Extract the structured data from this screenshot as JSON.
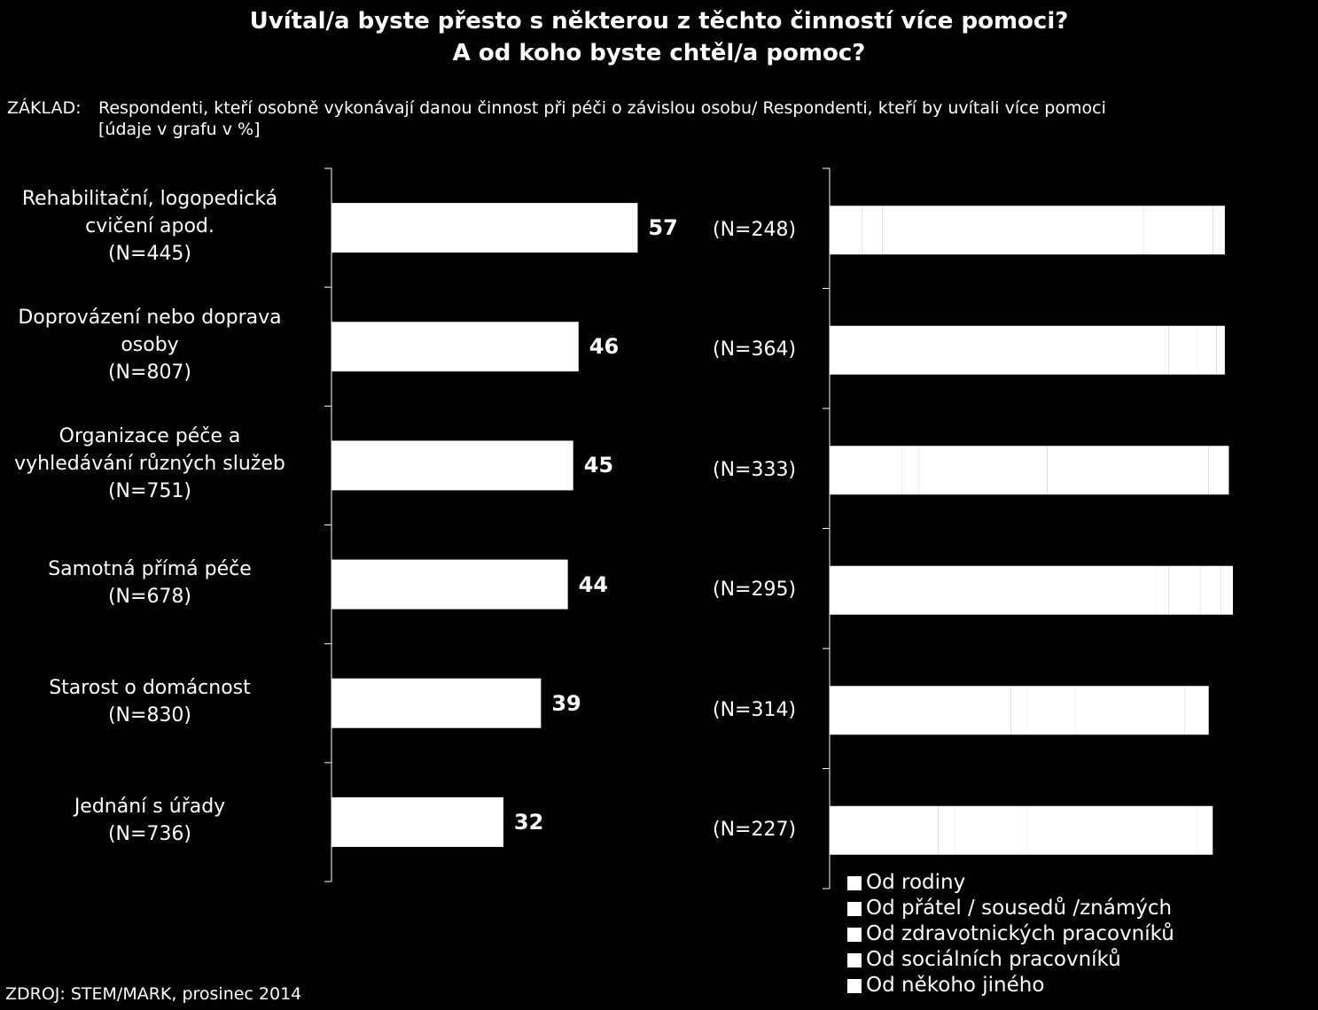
{
  "title": {
    "line1": "Uvítal/a byste přesto s některou z těchto činností více pomoci?",
    "line2": "A od koho byste chtěl/a pomoc?"
  },
  "basis": {
    "label": "ZÁKLAD:",
    "text": "Respondenti, kteří osobně vykonávají danou činnost při péči o závislou osobu/ Respondenti, kteří by uvítali více pomoci",
    "unit": "[údaje v grafu v %]"
  },
  "source": "ZDROJ: STEM/MARK, prosinec 2014",
  "colors": {
    "background": "#000000",
    "bar": "#ffffff",
    "text": "#ffffff"
  },
  "chart_data": [
    {
      "type": "bar",
      "orientation": "horizontal",
      "categories": [
        {
          "lines": [
            "Rehabilitační, logopedická",
            "cvičení apod.",
            "(N=445)"
          ]
        },
        {
          "lines": [
            "Doprovázení nebo doprava",
            "osoby",
            "(N=807)"
          ]
        },
        {
          "lines": [
            "Organizace péče a",
            "vyhledávání různých služeb",
            "(N=751)"
          ]
        },
        {
          "lines": [
            "Samotná přímá péče",
            "(N=678)"
          ]
        },
        {
          "lines": [
            "Starost o domácnost",
            "(N=830)"
          ]
        },
        {
          "lines": [
            "Jednání s úřady",
            "(N=736)"
          ]
        }
      ],
      "values": [
        57,
        46,
        45,
        44,
        39,
        32
      ],
      "data_labels": [
        "57",
        "46",
        "45",
        "44",
        "39",
        "32"
      ],
      "xlim": [
        0,
        100
      ],
      "grid": false
    },
    {
      "type": "bar",
      "orientation": "horizontal",
      "stacked": true,
      "categories": [
        "(N=248)",
        "(N=364)",
        "(N=333)",
        "(N=295)",
        "(N=314)",
        "(N=227)"
      ],
      "series": [
        {
          "name": "Od rodiny",
          "values": [
            8,
            80,
            18,
            81,
            45,
            27
          ]
        },
        {
          "name": "Od přátel / sousedů /známých",
          "values": [
            5,
            4,
            4,
            3,
            4,
            4
          ]
        },
        {
          "name": "Od zdravotnických pracovníků",
          "values": [
            65,
            7,
            32,
            8,
            12,
            18
          ]
        },
        {
          "name": "Od sociálních pracovníků",
          "values": [
            17,
            5,
            40,
            5,
            27,
            42
          ]
        },
        {
          "name": "Od někoho jiného",
          "values": [
            3,
            2,
            5,
            3,
            6,
            4
          ]
        }
      ],
      "xlim": [
        0,
        100
      ],
      "legend": "bottom",
      "grid": false
    }
  ]
}
